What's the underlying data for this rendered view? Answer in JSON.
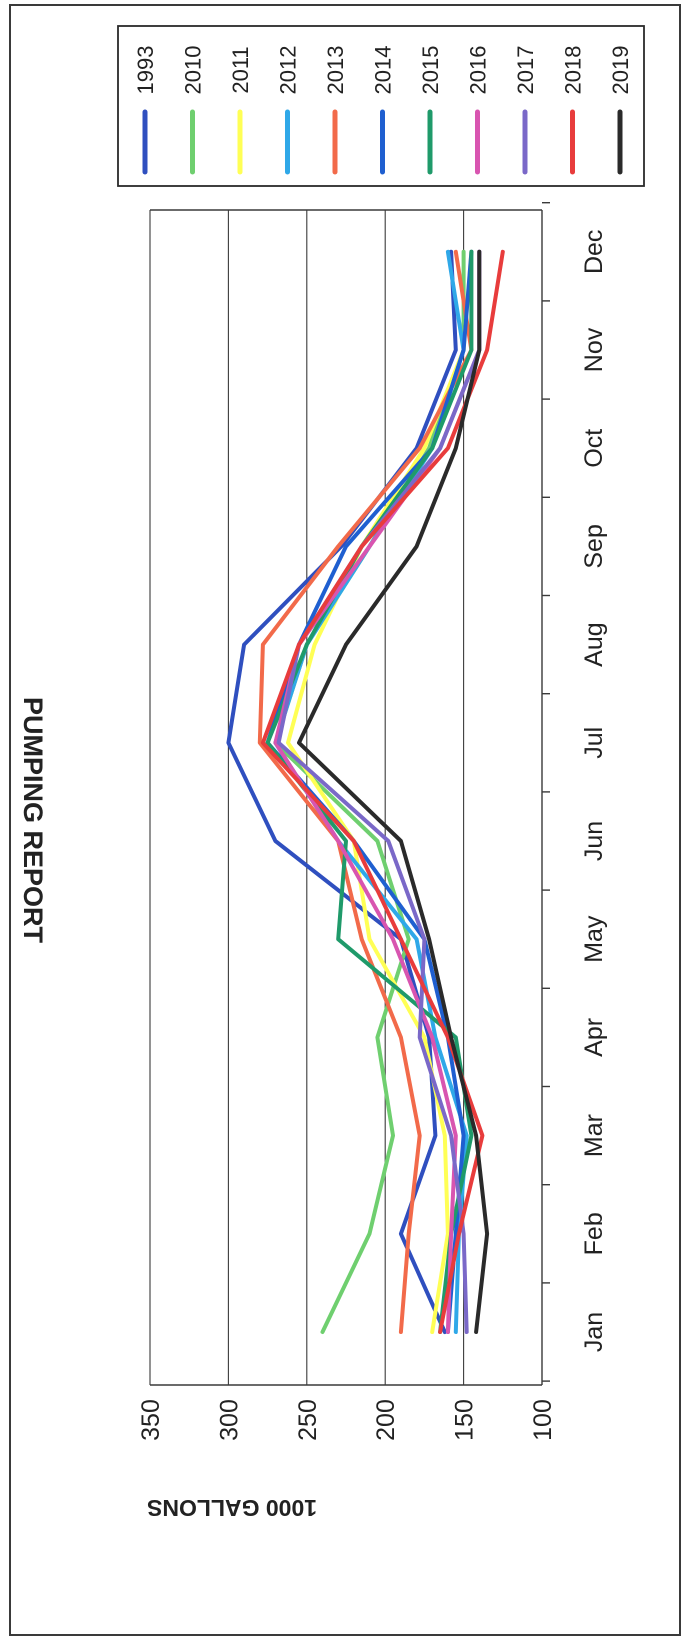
{
  "chart_data": {
    "type": "line",
    "title": "PUMPING REPORT",
    "ylabel": "1000 GALLONS",
    "xlabel": "",
    "ylim": [
      100,
      350
    ],
    "yticks": [
      100,
      150,
      200,
      250,
      300,
      350
    ],
    "ytick_labels": [
      "100",
      "150",
      "200",
      "250",
      "300",
      "350"
    ],
    "grid": "horizontal",
    "legend_position": "top-right",
    "orientation": "rotated 90 degrees clockwise",
    "categories": [
      "Jan",
      "Feb",
      "Mar",
      "Apr",
      "May",
      "Jun",
      "Jul",
      "Aug",
      "Sep",
      "Oct",
      "Nov",
      "Dec"
    ],
    "series": [
      {
        "name": "1993",
        "color": "#2f4fbf",
        "values": [
          162,
          190,
          168,
          172,
          190,
          270,
          300,
          290,
          228,
          180,
          155,
          158
        ]
      },
      {
        "name": "2010",
        "color": "#6fcf6f",
        "values": [
          240,
          210,
          195,
          205,
          185,
          205,
          270,
          250,
          210,
          172,
          150,
          150
        ]
      },
      {
        "name": "2011",
        "color": "#ffff55",
        "values": [
          170,
          160,
          162,
          175,
          210,
          220,
          262,
          245,
          215,
          175,
          150,
          145
        ]
      },
      {
        "name": "2012",
        "color": "#2fa8e8",
        "values": [
          155,
          153,
          148,
          168,
          180,
          230,
          270,
          250,
          210,
          170,
          150,
          160
        ]
      },
      {
        "name": "2013",
        "color": "#f26a4a",
        "values": [
          190,
          185,
          178,
          190,
          215,
          230,
          280,
          278,
          230,
          178,
          145,
          155
        ]
      },
      {
        "name": "2014",
        "color": "#1f5fd0",
        "values": [
          160,
          155,
          150,
          160,
          175,
          220,
          275,
          255,
          225,
          170,
          150,
          145
        ]
      },
      {
        "name": "2015",
        "color": "#1f9a6a",
        "values": [
          165,
          158,
          145,
          155,
          230,
          225,
          275,
          250,
          215,
          170,
          145,
          145
        ]
      },
      {
        "name": "2016",
        "color": "#d855b0",
        "values": [
          160,
          158,
          155,
          170,
          195,
          230,
          270,
          255,
          210,
          165,
          140,
          140
        ]
      },
      {
        "name": "2017",
        "color": "#7a68c8",
        "values": [
          148,
          150,
          158,
          178,
          175,
          198,
          268,
          255,
          215,
          165,
          140,
          140
        ]
      },
      {
        "name": "2018",
        "color": "#e83c3c",
        "values": [
          165,
          153,
          138,
          160,
          190,
          220,
          278,
          255,
          215,
          160,
          135,
          125
        ]
      },
      {
        "name": "2019",
        "color": "#2a2a2a",
        "values": [
          142,
          135,
          142,
          158,
          172,
          190,
          255,
          225,
          180,
          155,
          140,
          140
        ]
      }
    ]
  }
}
